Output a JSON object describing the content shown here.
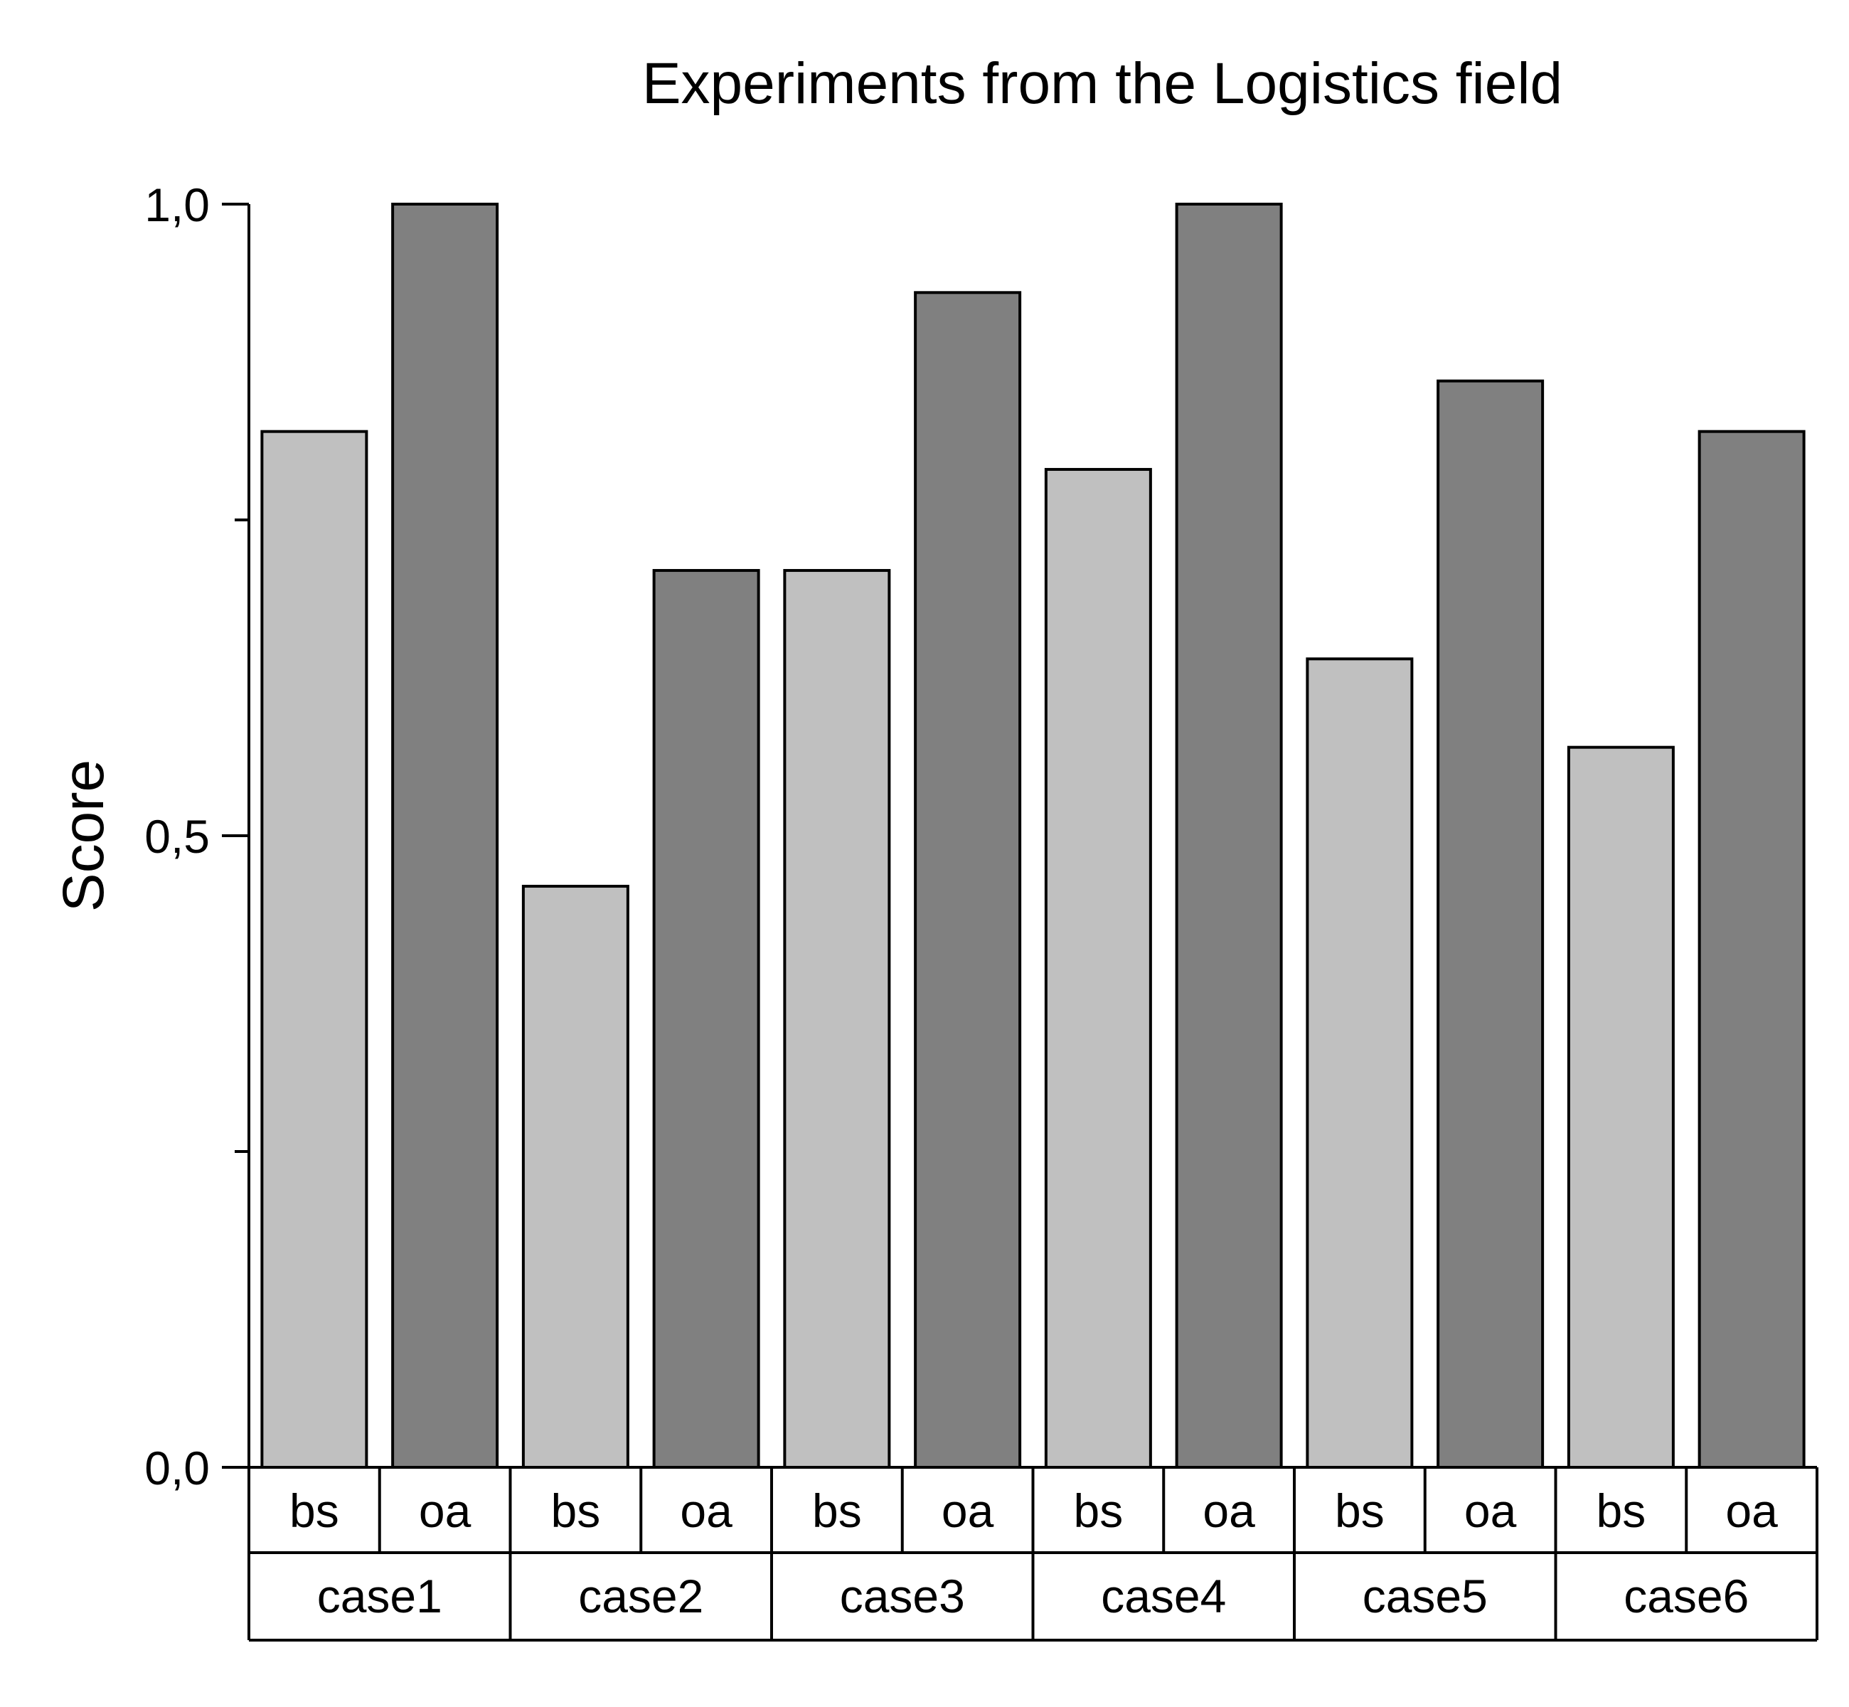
{
  "chart_data": {
    "type": "bar",
    "title": "Experiments from the Logistics field",
    "xlabel": "",
    "ylabel": "Score",
    "ylim": [
      0,
      1
    ],
    "y_ticks": [
      {
        "value": 0.0,
        "label": "0,0"
      },
      {
        "value": 0.5,
        "label": "0,5"
      },
      {
        "value": 1.0,
        "label": "1,0"
      }
    ],
    "y_minor_ticks": [
      0.25,
      0.75
    ],
    "grid": false,
    "groups": [
      {
        "label": "case1",
        "bars": [
          {
            "label": "bs",
            "value": 0.82
          },
          {
            "label": "oa",
            "value": 1.0
          }
        ]
      },
      {
        "label": "case2",
        "bars": [
          {
            "label": "bs",
            "value": 0.46
          },
          {
            "label": "oa",
            "value": 0.71
          }
        ]
      },
      {
        "label": "case3",
        "bars": [
          {
            "label": "bs",
            "value": 0.71
          },
          {
            "label": "oa",
            "value": 0.93
          }
        ]
      },
      {
        "label": "case4",
        "bars": [
          {
            "label": "bs",
            "value": 0.79
          },
          {
            "label": "oa",
            "value": 1.0
          }
        ]
      },
      {
        "label": "case5",
        "bars": [
          {
            "label": "bs",
            "value": 0.64
          },
          {
            "label": "oa",
            "value": 0.86
          }
        ]
      },
      {
        "label": "case6",
        "bars": [
          {
            "label": "bs",
            "value": 0.57
          },
          {
            "label": "oa",
            "value": 0.82
          }
        ]
      }
    ],
    "colors": {
      "bs": "#c0c0c0",
      "oa": "#808080",
      "stroke": "#000000"
    }
  }
}
